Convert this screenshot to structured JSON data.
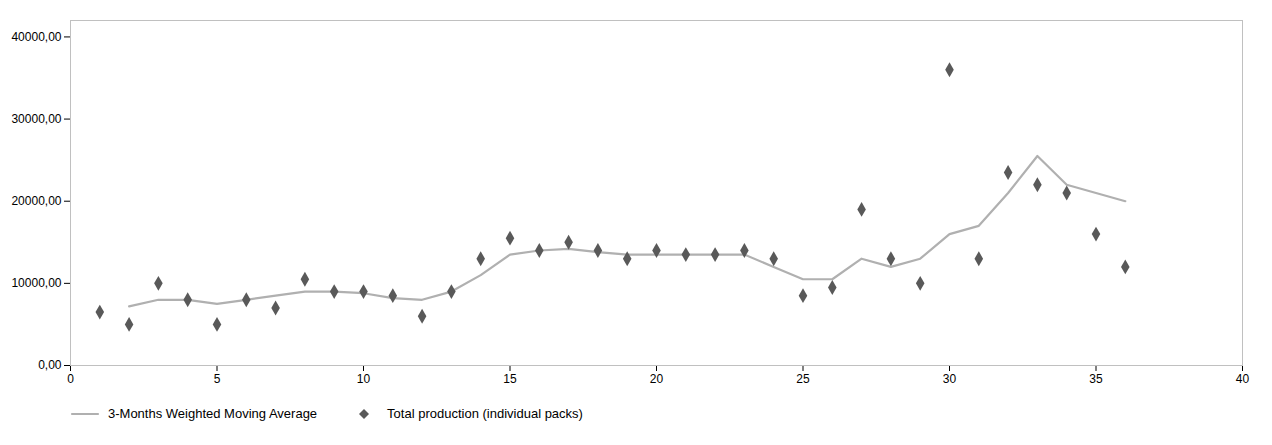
{
  "chart_data": {
    "type": "line",
    "series": [
      {
        "name": "3-Months Weighted Moving Average",
        "type": "line",
        "color": "#b0b0b0",
        "x": [
          2,
          3,
          4,
          5,
          6,
          7,
          8,
          9,
          10,
          11,
          12,
          13,
          14,
          15,
          16,
          17,
          18,
          19,
          20,
          21,
          22,
          23,
          24,
          25,
          26,
          27,
          28,
          29,
          30,
          31,
          32,
          33,
          34,
          35,
          36
        ],
        "values": [
          7200,
          8000,
          8000,
          7500,
          8000,
          8500,
          9000,
          9000,
          8800,
          8200,
          8000,
          9000,
          11000,
          13500,
          14000,
          14200,
          13800,
          13500,
          13500,
          13500,
          13500,
          13500,
          12000,
          10500,
          10500,
          13000,
          12000,
          13000,
          16000,
          17000,
          21000,
          25500,
          22000,
          21000,
          20000
        ]
      },
      {
        "name": "Total production (individual packs)",
        "type": "scatter",
        "color": "#595959",
        "marker": "diamond",
        "x": [
          1,
          2,
          3,
          4,
          5,
          6,
          7,
          8,
          9,
          10,
          11,
          12,
          13,
          14,
          15,
          16,
          17,
          18,
          19,
          20,
          21,
          22,
          23,
          24,
          25,
          26,
          27,
          28,
          29,
          30,
          31,
          32,
          33,
          34,
          35,
          36
        ],
        "values": [
          6500,
          5000,
          10000,
          8000,
          5000,
          8000,
          7000,
          10500,
          9000,
          9000,
          8500,
          6000,
          9000,
          13000,
          15500,
          14000,
          15000,
          14000,
          13000,
          14000,
          13500,
          13500,
          14000,
          13000,
          8500,
          9500,
          19000,
          13000,
          10000,
          36000,
          13000,
          23500,
          22000,
          21000,
          16000,
          12000
        ]
      }
    ],
    "xlim": [
      0,
      40
    ],
    "xticks": [
      0,
      5,
      10,
      15,
      20,
      25,
      30,
      35,
      40
    ],
    "ylim": [
      0,
      42000
    ],
    "yticks": [
      {
        "value": 0,
        "label": "0,00"
      },
      {
        "value": 10000,
        "label": "10000,00"
      },
      {
        "value": 20000,
        "label": "20000,00"
      },
      {
        "value": 30000,
        "label": "30000,00"
      },
      {
        "value": 40000,
        "label": "40000,00"
      }
    ],
    "grid": false,
    "legend": "bottom"
  }
}
